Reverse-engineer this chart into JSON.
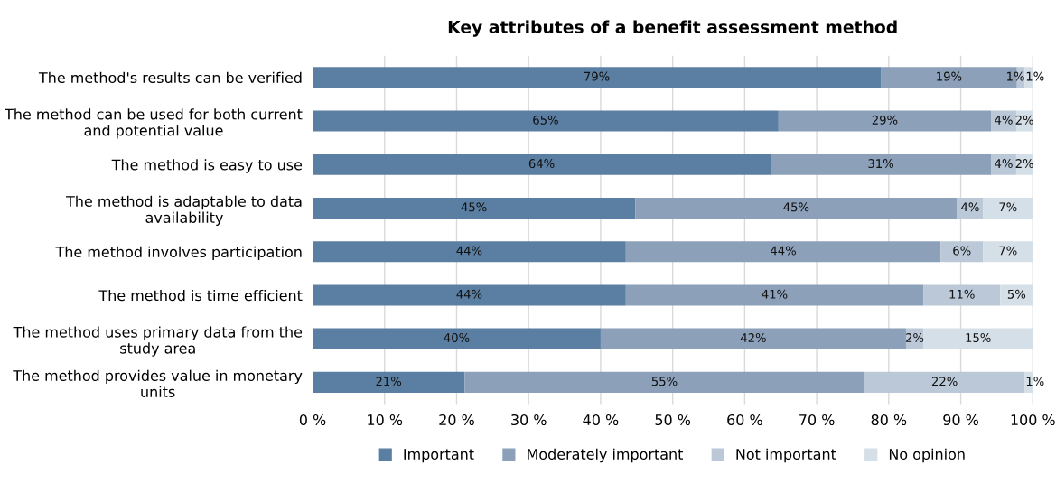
{
  "chart_data": {
    "type": "bar",
    "orientation": "horizontal",
    "stacked": true,
    "title": "Key attributes of a benefit assessment method",
    "categories": [
      "The method's results can be verified",
      "The method can be used for both current and potential value",
      "The method is easy to use",
      "The method is adaptable to data availability",
      "The method involves participation",
      "The method is time efficient",
      "The method uses primary data from the study area",
      "The method provides value in monetary units"
    ],
    "series": [
      {
        "name": "Important",
        "color": "#5b7fa2",
        "values": [
          78.9,
          64.7,
          63.6,
          44.8,
          43.5,
          43.5,
          40.0,
          21.1
        ],
        "value_labels": [
          "79%",
          "65%",
          "64%",
          "45%",
          "44%",
          "44%",
          "40%",
          "21%"
        ]
      },
      {
        "name": "Moderately important",
        "color": "#8ca0ba",
        "values": [
          18.9,
          29.5,
          30.6,
          44.7,
          43.7,
          41.3,
          42.4,
          55.5
        ],
        "value_labels": [
          "19%",
          "29%",
          "31%",
          "45%",
          "44%",
          "41%",
          "42%",
          "55%"
        ]
      },
      {
        "name": "Not important",
        "color": "#bac8d8",
        "values": [
          1.1,
          3.5,
          3.5,
          3.6,
          5.9,
          10.7,
          2.4,
          22.3
        ],
        "value_labels": [
          "1%",
          "4%",
          "4%",
          "4%",
          "6%",
          "11%",
          "2%",
          "22%"
        ]
      },
      {
        "name": "No opinion",
        "color": "#d5dfe7",
        "values": [
          1.1,
          2.3,
          2.3,
          6.9,
          6.9,
          4.5,
          15.2,
          1.1
        ],
        "value_labels": [
          "1%",
          "2%",
          "2%",
          "7%",
          "7%",
          "5%",
          "15%",
          "1%"
        ]
      }
    ],
    "xlim": [
      0,
      100
    ],
    "xticks": [
      {
        "value": 0,
        "label": "0 %"
      },
      {
        "value": 10,
        "label": "10 %"
      },
      {
        "value": 20,
        "label": "20 %"
      },
      {
        "value": 30,
        "label": "30 %"
      },
      {
        "value": 40,
        "label": "40 %"
      },
      {
        "value": 50,
        "label": "50 %"
      },
      {
        "value": 60,
        "label": "60 %"
      },
      {
        "value": 70,
        "label": "70 %"
      },
      {
        "value": 80,
        "label": "80 %"
      },
      {
        "value": 90,
        "label": "90 %"
      },
      {
        "value": 100,
        "label": "100 %"
      }
    ],
    "grid": "x",
    "legend": "bottom"
  }
}
